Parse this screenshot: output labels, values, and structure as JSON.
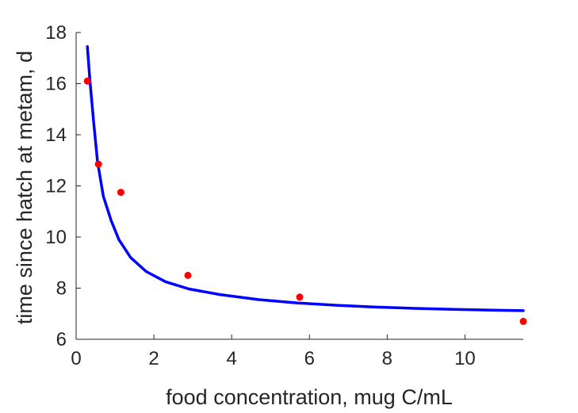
{
  "chart_data": {
    "type": "scatter",
    "title": "",
    "xlabel": "food concentration, mug C/mL",
    "ylabel": "time since hatch at metam, d",
    "xlim": [
      0,
      11.5
    ],
    "ylim": [
      6,
      18
    ],
    "xticks": [
      0,
      2,
      4,
      6,
      8,
      10
    ],
    "yticks": [
      6,
      8,
      10,
      12,
      14,
      16,
      18
    ],
    "grid": false,
    "legend": "none",
    "series": [
      {
        "kind": "points",
        "color": "#ff0000",
        "x": [
          0.29,
          0.575,
          1.15,
          2.875,
          5.75,
          11.5
        ],
        "y": [
          16.1,
          12.85,
          11.75,
          8.5,
          7.65,
          6.7
        ]
      },
      {
        "kind": "line",
        "color": "#0000ff",
        "x": [
          0.29,
          0.35,
          0.45,
          0.55,
          0.7,
          0.9,
          1.1,
          1.4,
          1.8,
          2.3,
          2.9,
          3.7,
          4.7,
          5.7,
          6.7,
          7.7,
          8.7,
          9.7,
          10.7,
          11.5
        ],
        "y": [
          17.45,
          16.2,
          14.5,
          12.95,
          11.6,
          10.65,
          9.9,
          9.2,
          8.65,
          8.25,
          7.97,
          7.75,
          7.55,
          7.42,
          7.33,
          7.26,
          7.21,
          7.17,
          7.14,
          7.12
        ]
      }
    ]
  }
}
